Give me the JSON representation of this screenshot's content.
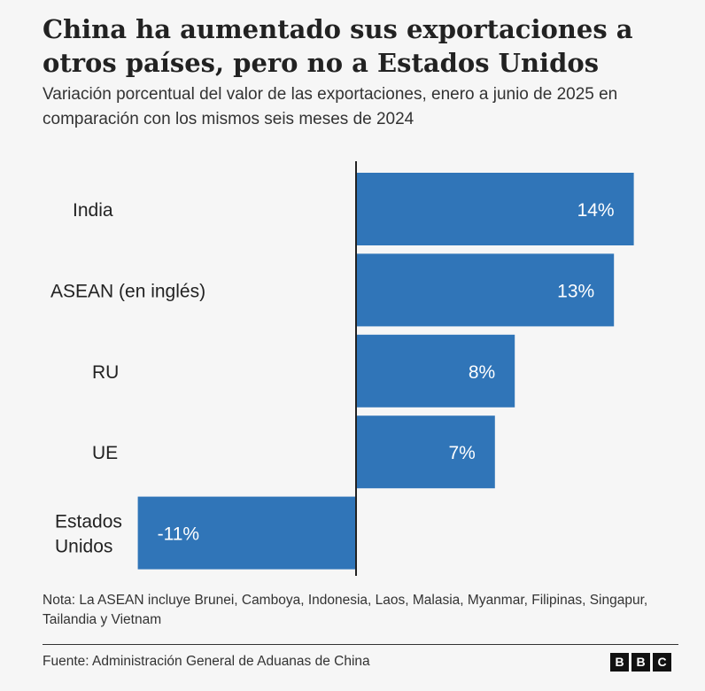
{
  "header": {
    "title": "China ha aumentado sus exportaciones a otros países, pero no a Estados Unidos",
    "subtitle": "Variación porcentual del valor de las exportaciones, enero a junio de 2025 en comparación con los mismos seis meses de 2024"
  },
  "chart_data": {
    "type": "bar",
    "orientation": "horizontal",
    "categories": [
      "India",
      "ASEAN (en inglés)",
      "RU",
      "UE",
      "Estados Unidos"
    ],
    "category_lines": [
      [
        "India"
      ],
      [
        "ASEAN (en inglés)"
      ],
      [
        "RU"
      ],
      [
        "UE"
      ],
      [
        "Estados",
        "Unidos"
      ]
    ],
    "values": [
      14,
      13,
      8,
      7,
      -11
    ],
    "value_labels": [
      "14%",
      "13%",
      "8%",
      "7%",
      "-11%"
    ],
    "xlim": [
      -11,
      14
    ],
    "bar_color": "#3075b8",
    "grid": false,
    "legend": "none"
  },
  "footer": {
    "note": "Nota: La ASEAN incluye Brunei, Camboya, Indonesia, Laos, Malasia, Myanmar, Filipinas, Singapur, Tailandia y Vietnam",
    "source": "Fuente: Administración General de Aduanas de China",
    "logo_letters": [
      "B",
      "B",
      "C"
    ]
  }
}
